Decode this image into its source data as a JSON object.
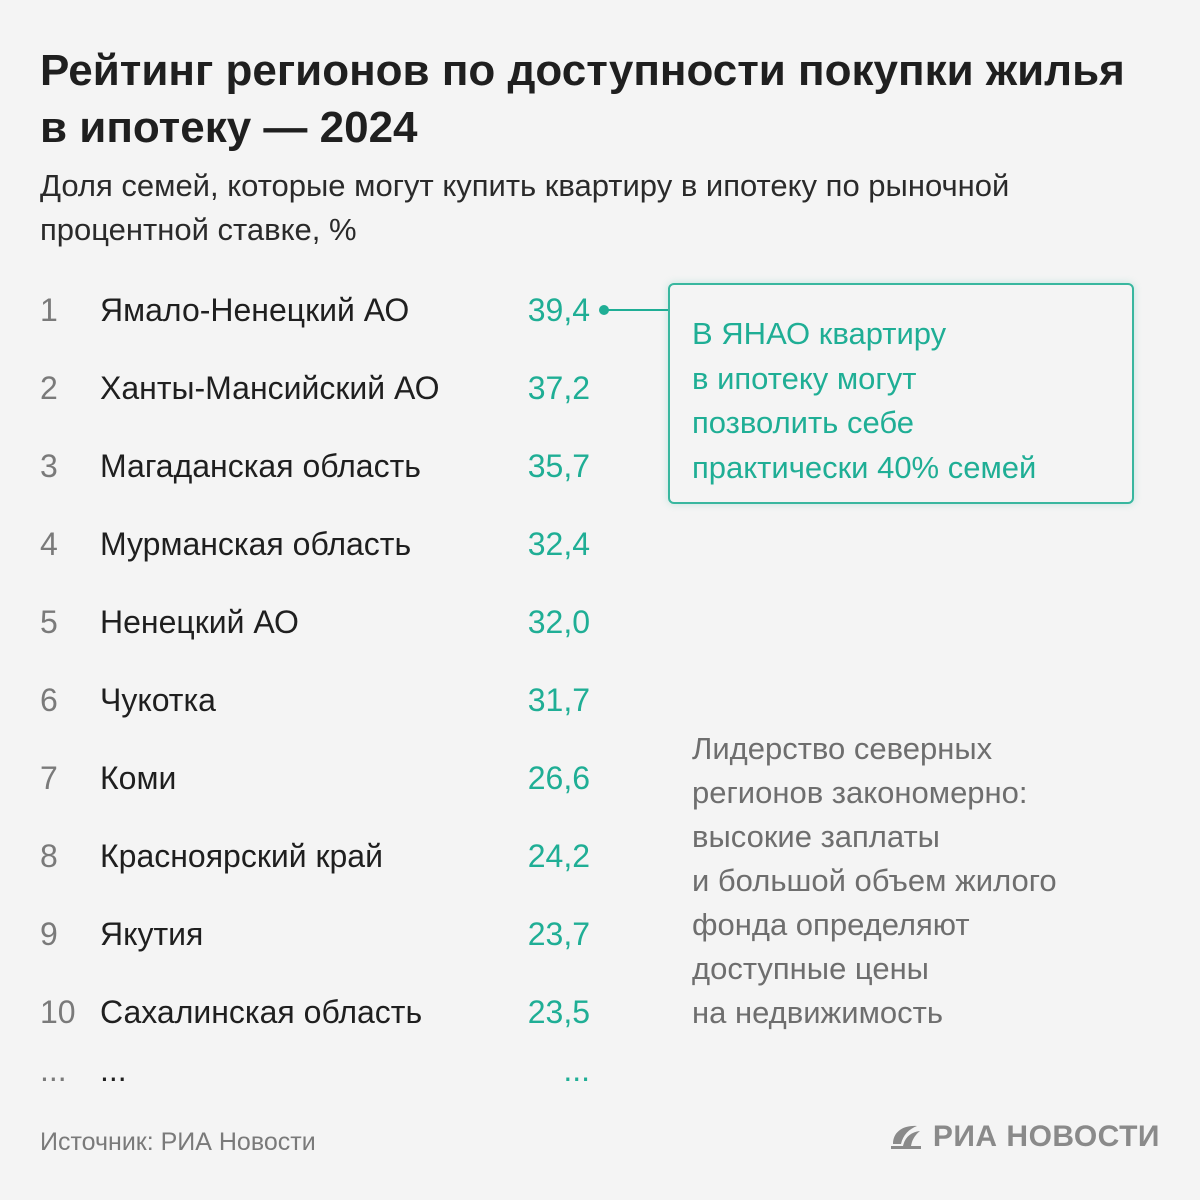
{
  "title": "Рейтинг регионов по доступности покупки жилья в ипотеку — 2024",
  "subtitle": "Доля семей, которые могут купить квартиру в ипотеку по рыночной процентной ставке, %",
  "chart_data": {
    "type": "table",
    "title": "Рейтинг регионов по доступности покупки жилья в ипотеку — 2024",
    "subtitle": "Доля семей, которые могут купить квартиру в ипотеку по рыночной процентной ставке, %",
    "unit": "%",
    "rows": [
      {
        "rank": "1",
        "region": "Ямало-Ненецкий АО",
        "value": "39,4"
      },
      {
        "rank": "2",
        "region": "Ханты-Мансийский АО",
        "value": "37,2"
      },
      {
        "rank": "3",
        "region": "Магаданская область",
        "value": "35,7"
      },
      {
        "rank": "4",
        "region": "Мурманская область",
        "value": "32,4"
      },
      {
        "rank": "5",
        "region": "Ненецкий АО",
        "value": "32,0"
      },
      {
        "rank": "6",
        "region": "Чукотка",
        "value": "31,7"
      },
      {
        "rank": "7",
        "region": "Коми",
        "value": "26,6"
      },
      {
        "rank": "8",
        "region": "Красноярский край",
        "value": "24,2"
      },
      {
        "rank": "9",
        "region": "Якутия",
        "value": "23,7"
      },
      {
        "rank": "10",
        "region": "Сахалинская область",
        "value": "23,5"
      },
      {
        "rank": "...",
        "region": "...",
        "value": "..."
      }
    ],
    "annotations": [
      "В ЯНАО квартиру в ипотеку могут позволить себе практически 40% семей",
      "Лидерство северных регионов закономерно: высокие заплаты и большой объем жилого фонда определяют доступные цены на недвижимость"
    ]
  },
  "callout": {
    "lines": [
      "В ЯНАО квартиру",
      "в ипотеку могут",
      "позволить себе",
      "практически 40% семей"
    ]
  },
  "note": {
    "lines": [
      "Лидерство северных",
      "регионов закономерно:",
      "высокие заплаты",
      "и большой объем жилого",
      "фонда определяют",
      "доступные цены",
      "на недвижимость"
    ]
  },
  "source": "Источник: РИА Новости",
  "logo_text": "РИА НОВОСТИ",
  "colors": {
    "accent": "#1fae95",
    "text": "#1f1f1f",
    "muted": "#7a7a7a",
    "background": "#f4f4f4"
  }
}
